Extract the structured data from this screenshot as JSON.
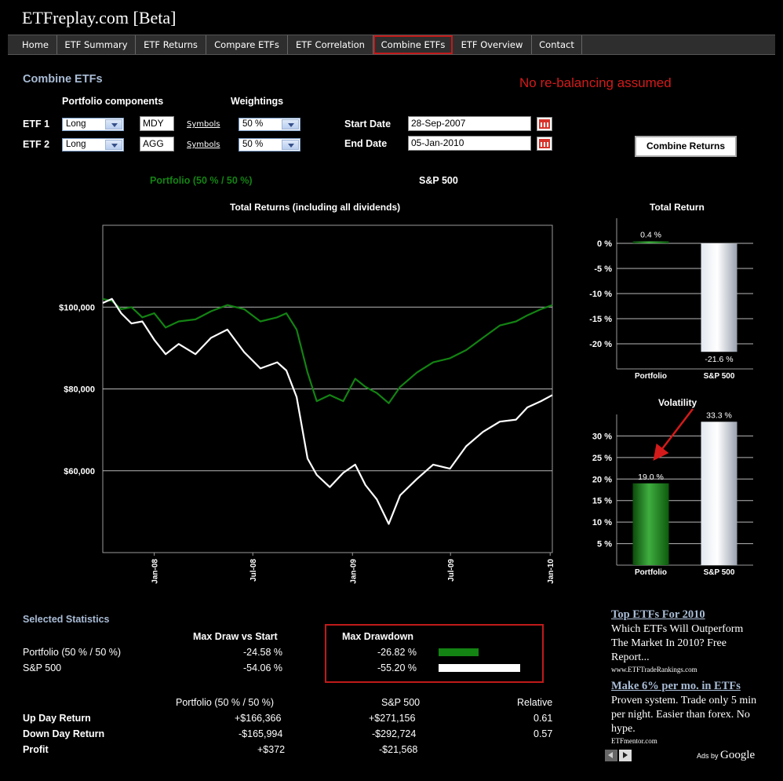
{
  "site": {
    "title": "ETFreplay.com [Beta]"
  },
  "nav": [
    {
      "label": "Home",
      "active": false
    },
    {
      "label": "ETF Summary",
      "active": false
    },
    {
      "label": "ETF Returns",
      "active": false
    },
    {
      "label": "Compare ETFs",
      "active": false
    },
    {
      "label": "ETF Correlation",
      "active": false
    },
    {
      "label": "Combine ETFs",
      "active": true
    },
    {
      "label": "ETF Overview",
      "active": false
    },
    {
      "label": "Contact",
      "active": false
    }
  ],
  "page": {
    "heading": "Combine ETFs",
    "notice": "No re-balancing assumed"
  },
  "form": {
    "components_label": "Portfolio components",
    "weightings_label": "Weightings",
    "etf1": {
      "label": "ETF 1",
      "position": "Long",
      "symbol": "MDY",
      "symbols_link": "Symbols",
      "weight": "50 %"
    },
    "etf2": {
      "label": "ETF 2",
      "position": "Long",
      "symbol": "AGG",
      "symbols_link": "Symbols",
      "weight": "50 %"
    },
    "start_label": "Start Date",
    "start_value": "28-Sep-2007",
    "end_label": "End Date",
    "end_value": "05-Jan-2010",
    "combine_button": "Combine Returns"
  },
  "legend": {
    "portfolio": "Portfolio (50 % / 50 %)",
    "sp500": "S&P 500"
  },
  "colors": {
    "portfolio": "#138313",
    "sp500": "#ffffff",
    "heading": "#a9bcd6",
    "notice": "#d41a1a"
  },
  "chart_data": [
    {
      "type": "line",
      "title": "Total Returns (including all dividends)",
      "xlabel": "",
      "ylabel": "",
      "x_ticks": [
        "Jan-08",
        "Jul-08",
        "Jan-09",
        "Jul-09",
        "Jan-10"
      ],
      "x_tick_dates": [
        "2008-01-01",
        "2008-07-01",
        "2009-01-01",
        "2009-07-01",
        "2010-01-01"
      ],
      "y_ticks": [
        "$100,000",
        "$80,000",
        "$60,000"
      ],
      "y_tick_values": [
        100000,
        80000,
        60000
      ],
      "ylim": [
        40000,
        120000
      ],
      "xlim": [
        "2007-09-28",
        "2010-01-05"
      ],
      "grid": true,
      "series": [
        {
          "name": "Portfolio (50 % / 50 %)",
          "color": "#138313",
          "x": [
            "2007-09-28",
            "2007-10-15",
            "2007-11-01",
            "2007-11-20",
            "2007-12-10",
            "2008-01-01",
            "2008-01-22",
            "2008-02-15",
            "2008-03-17",
            "2008-04-15",
            "2008-05-15",
            "2008-06-15",
            "2008-07-15",
            "2008-08-15",
            "2008-09-01",
            "2008-09-20",
            "2008-10-10",
            "2008-10-27",
            "2008-11-20",
            "2008-12-15",
            "2009-01-06",
            "2009-01-25",
            "2009-02-15",
            "2009-03-09",
            "2009-03-30",
            "2009-04-30",
            "2009-05-30",
            "2009-06-30",
            "2009-07-30",
            "2009-08-30",
            "2009-09-30",
            "2009-10-30",
            "2009-11-20",
            "2009-12-15",
            "2010-01-05"
          ],
          "values": [
            102000,
            101500,
            99500,
            100000,
            97500,
            98500,
            95000,
            96500,
            97000,
            99000,
            100500,
            99500,
            96500,
            97500,
            98500,
            94500,
            84000,
            77000,
            78500,
            77000,
            82500,
            80500,
            79000,
            76500,
            80500,
            84000,
            86500,
            87500,
            89500,
            92500,
            95500,
            96500,
            98000,
            99500,
            100500
          ]
        },
        {
          "name": "S&P 500",
          "color": "#ffffff",
          "x": [
            "2007-09-28",
            "2007-10-15",
            "2007-11-01",
            "2007-11-20",
            "2007-12-10",
            "2008-01-01",
            "2008-01-22",
            "2008-02-15",
            "2008-03-17",
            "2008-04-15",
            "2008-05-15",
            "2008-06-15",
            "2008-07-15",
            "2008-08-15",
            "2008-09-01",
            "2008-09-20",
            "2008-10-10",
            "2008-10-27",
            "2008-11-20",
            "2008-12-15",
            "2009-01-06",
            "2009-01-25",
            "2009-02-15",
            "2009-03-09",
            "2009-03-30",
            "2009-04-30",
            "2009-05-30",
            "2009-06-30",
            "2009-07-30",
            "2009-08-30",
            "2009-09-30",
            "2009-10-30",
            "2009-11-20",
            "2009-12-15",
            "2010-01-05"
          ],
          "values": [
            101000,
            102000,
            98500,
            96000,
            96500,
            92000,
            88500,
            91000,
            88500,
            92500,
            94500,
            89000,
            85000,
            86500,
            84500,
            78000,
            63000,
            59000,
            56000,
            59500,
            61500,
            56500,
            53000,
            47000,
            54000,
            58000,
            61500,
            60500,
            66000,
            69500,
            72000,
            72500,
            75500,
            77000,
            78500
          ]
        }
      ]
    },
    {
      "type": "bar",
      "title": "Total Return",
      "categories": [
        "Portfolio",
        "S&P 500"
      ],
      "values": [
        0.4,
        -21.6
      ],
      "data_labels": [
        "0.4 %",
        "-21.6 %"
      ],
      "y_ticks": [
        "0 %",
        "-5 %",
        "-10 %",
        "-15 %",
        "-20 %"
      ],
      "y_tick_values": [
        0,
        -5,
        -10,
        -15,
        -20
      ],
      "ylim": [
        -25,
        5
      ],
      "colors": [
        "#138313",
        "#ffffff"
      ]
    },
    {
      "type": "bar",
      "title": "Volatility",
      "categories": [
        "Portfolio",
        "S&P 500"
      ],
      "values": [
        19.0,
        33.3
      ],
      "data_labels": [
        "19.0 %",
        "33.3 %"
      ],
      "y_ticks": [
        "30 %",
        "25 %",
        "20 %",
        "15 %",
        "10 %",
        "5 %"
      ],
      "y_tick_values": [
        30,
        25,
        20,
        15,
        10,
        5
      ],
      "ylim": [
        0,
        35
      ],
      "colors": [
        "#138313",
        "#ffffff"
      ]
    }
  ],
  "stats": {
    "heading": "Selected Statistics",
    "col_max_draw_vs_start": "Max Draw vs Start",
    "col_max_drawdown": "Max Drawdown",
    "rows": [
      {
        "name": "Portfolio (50 % / 50 %)",
        "max_draw_vs_start": "-24.58 %",
        "max_drawdown": "-26.82 %",
        "drawdown_value": 26.82,
        "color": "#138313"
      },
      {
        "name": "S&P 500",
        "max_draw_vs_start": "-54.06 %",
        "max_drawdown": "-55.20 %",
        "drawdown_value": 55.2,
        "color": "#ffffff"
      }
    ],
    "table2_headers": [
      "Portfolio (50 % / 50 %)",
      "S&P 500",
      "Relative"
    ],
    "table2_rows": [
      {
        "label": "Up Day Return",
        "portfolio": "+$166,366",
        "sp500": "+$271,156",
        "relative": "0.61"
      },
      {
        "label": "Down Day Return",
        "portfolio": "-$165,994",
        "sp500": "-$292,724",
        "relative": "0.57"
      },
      {
        "label": "Profit",
        "portfolio": "+$372",
        "sp500": "-$21,568",
        "relative": ""
      }
    ]
  },
  "ads": [
    {
      "title": "Top ETFs For 2010",
      "body": "Which ETFs Will Outperform The Market In 2010? Free Report...",
      "url": "www.ETFTradeRankings.com"
    },
    {
      "title": "Make 6% per mo. in ETFs",
      "body": "Proven system. Trade only 5 min per night. Easier than forex. No hype.",
      "url": "ETFmentor.com"
    }
  ],
  "ads_by": {
    "prefix": "Ads by",
    "brand": "Google"
  }
}
